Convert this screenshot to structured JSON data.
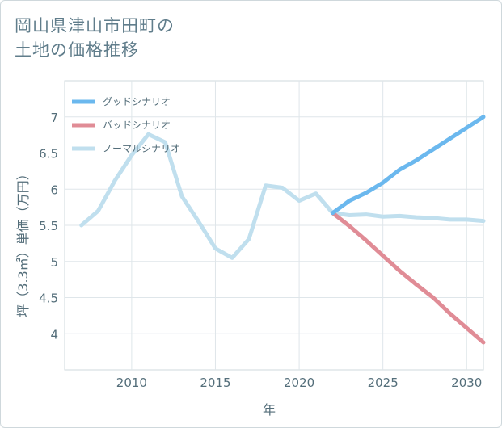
{
  "title_line1": "岡山県津山市田町の",
  "title_line2": "土地の価格推移",
  "chart_data": {
    "type": "line",
    "xlabel": "年",
    "ylabel": "坪（3.3㎡）単価（万円）",
    "xlim": [
      2006,
      2031
    ],
    "ylim": [
      3.5,
      7.5
    ],
    "xticks": [
      2010,
      2015,
      2020,
      2025,
      2030
    ],
    "yticks": [
      4,
      4.5,
      5,
      5.5,
      6,
      6.5,
      7
    ],
    "grid": true,
    "legend_position": "top-left",
    "series": [
      {
        "name": "グッドシナリオ",
        "color": "#6bb8ee",
        "x": [
          2022,
          2023,
          2024,
          2025,
          2026,
          2027,
          2028,
          2029,
          2030,
          2031
        ],
        "values": [
          5.67,
          5.84,
          5.95,
          6.09,
          6.27,
          6.4,
          6.55,
          6.7,
          6.85,
          7.0
        ]
      },
      {
        "name": "バッドシナリオ",
        "color": "#e08c96",
        "x": [
          2022,
          2023,
          2024,
          2025,
          2026,
          2027,
          2028,
          2029,
          2030,
          2031
        ],
        "values": [
          5.67,
          5.49,
          5.29,
          5.08,
          4.87,
          4.68,
          4.5,
          4.28,
          4.08,
          3.88
        ]
      },
      {
        "name": "ノーマルシナリオ",
        "color": "#c0dfee",
        "x": [
          2007,
          2008,
          2009,
          2010,
          2011,
          2012,
          2013,
          2014,
          2015,
          2016,
          2017,
          2018,
          2019,
          2020,
          2021,
          2022,
          2023,
          2024,
          2025,
          2026,
          2027,
          2028,
          2029,
          2030,
          2031
        ],
        "values": [
          5.5,
          5.7,
          6.12,
          6.47,
          6.76,
          6.65,
          5.9,
          5.55,
          5.18,
          5.05,
          5.31,
          6.05,
          6.02,
          5.84,
          5.94,
          5.67,
          5.64,
          5.65,
          5.62,
          5.63,
          5.61,
          5.6,
          5.58,
          5.58,
          5.56
        ]
      }
    ]
  }
}
